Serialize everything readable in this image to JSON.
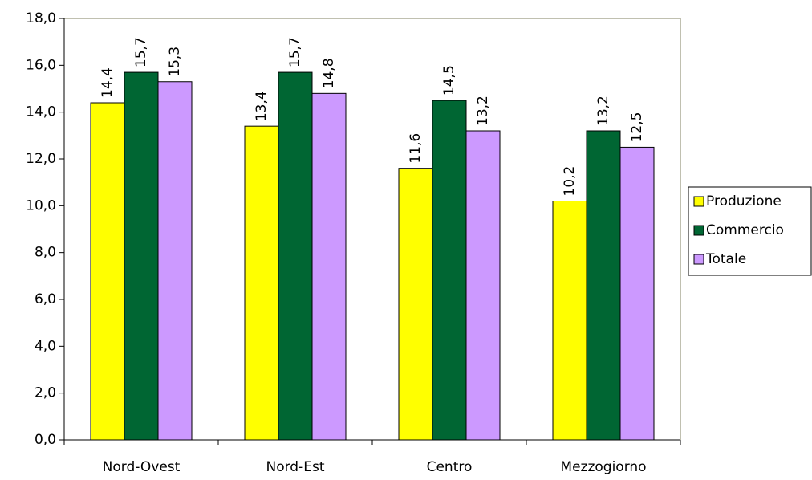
{
  "chart_data": {
    "type": "bar",
    "categories": [
      "Nord-Ovest",
      "Nord-Est",
      "Centro",
      "Mezzogiorno"
    ],
    "series": [
      {
        "name": "Produzione",
        "color": "#ffff00",
        "values": [
          14.4,
          13.4,
          11.6,
          10.2
        ],
        "value_labels": [
          "14,4",
          "13,4",
          "11,6",
          "10,2"
        ]
      },
      {
        "name": "Commercio",
        "color": "#006633",
        "values": [
          15.7,
          15.7,
          14.5,
          13.2
        ],
        "value_labels": [
          "15,7",
          "15,7",
          "14,5",
          "13,2"
        ]
      },
      {
        "name": "Totale",
        "color": "#cc99ff",
        "values": [
          15.3,
          14.8,
          13.2,
          12.5
        ],
        "value_labels": [
          "15,3",
          "14,8",
          "13,2",
          "12,5"
        ]
      }
    ],
    "ylim": [
      0,
      18
    ],
    "yticks": [
      {
        "value": 0,
        "label": "0,0"
      },
      {
        "value": 2,
        "label": "2,0"
      },
      {
        "value": 4,
        "label": "4,0"
      },
      {
        "value": 6,
        "label": "6,0"
      },
      {
        "value": 8,
        "label": "8,0"
      },
      {
        "value": 10,
        "label": "10,0"
      },
      {
        "value": 12,
        "label": "12,0"
      },
      {
        "value": 14,
        "label": "14,0"
      },
      {
        "value": 16,
        "label": "16,0"
      },
      {
        "value": 18,
        "label": "18,0"
      }
    ],
    "grid": false,
    "legend": "right"
  }
}
